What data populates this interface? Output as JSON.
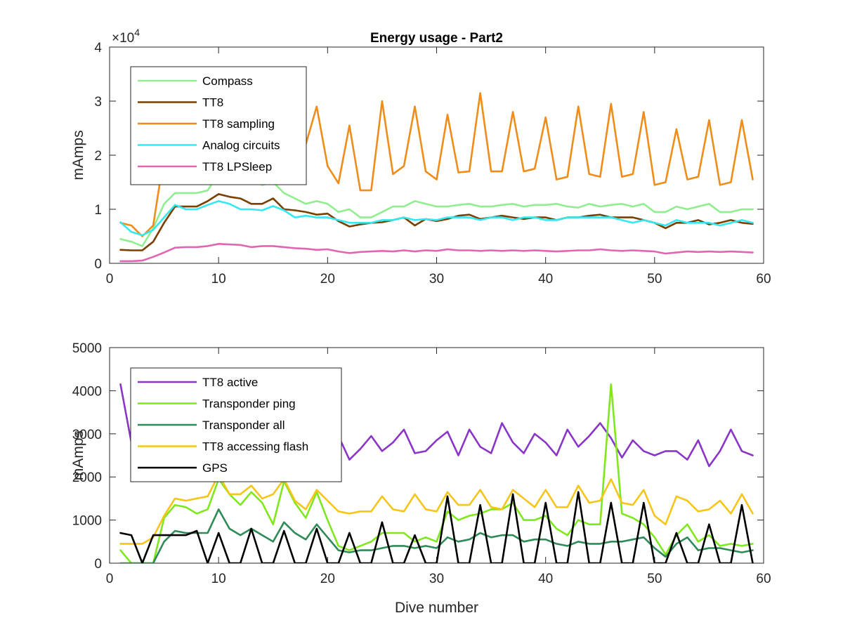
{
  "chart_data": [
    {
      "type": "line",
      "title": "Energy usage - Part2",
      "xlabel": "",
      "ylabel": "mAmps",
      "xlim": [
        0,
        60
      ],
      "ylim": [
        0,
        40000
      ],
      "xticks": [
        0,
        10,
        20,
        30,
        40,
        50,
        60
      ],
      "yticks": [
        0,
        10000,
        20000,
        30000,
        40000
      ],
      "ytick_labels": [
        "0",
        "1",
        "2",
        "3",
        "4"
      ],
      "exponent_label": "×10",
      "exponent_power": "4",
      "grid": false,
      "legend_position": "top-left",
      "x": [
        1,
        2,
        3,
        4,
        5,
        6,
        7,
        8,
        9,
        10,
        11,
        12,
        13,
        14,
        15,
        16,
        17,
        18,
        19,
        20,
        21,
        22,
        23,
        24,
        25,
        26,
        27,
        28,
        29,
        30,
        31,
        32,
        33,
        34,
        35,
        36,
        37,
        38,
        39,
        40,
        41,
        42,
        43,
        44,
        45,
        46,
        47,
        48,
        49,
        50,
        51,
        52,
        53,
        54,
        55,
        56,
        57,
        58,
        59
      ],
      "series": [
        {
          "name": "Compass",
          "color": "#90ee90",
          "values": [
            4500,
            4000,
            3200,
            6500,
            11000,
            13000,
            13000,
            13000,
            13500,
            16500,
            16000,
            15000,
            15500,
            14500,
            15000,
            13000,
            12000,
            11000,
            11500,
            11000,
            9500,
            10000,
            8500,
            8500,
            9500,
            10500,
            10500,
            11500,
            11000,
            10500,
            10500,
            10800,
            11000,
            10500,
            10500,
            10800,
            11000,
            10500,
            10800,
            10800,
            11000,
            10500,
            10300,
            11000,
            10500,
            10800,
            11000,
            10500,
            11000,
            9500,
            9500,
            10500,
            10000,
            10500,
            11000,
            9500,
            9500,
            10000,
            10000
          ]
        },
        {
          "name": "TT8",
          "color": "#7b3f00",
          "values": [
            2500,
            2400,
            2400,
            4000,
            7500,
            10500,
            10500,
            10500,
            11500,
            12800,
            12300,
            12000,
            11000,
            11000,
            12000,
            10000,
            9800,
            9500,
            9000,
            9200,
            7800,
            6800,
            7200,
            7500,
            7600,
            8000,
            8500,
            7000,
            8200,
            7800,
            8200,
            8800,
            9000,
            8200,
            8500,
            8800,
            8500,
            8200,
            8500,
            8500,
            8000,
            8500,
            8500,
            8800,
            9000,
            8500,
            8500,
            8500,
            8000,
            7500,
            6500,
            7500,
            7500,
            8000,
            7200,
            7500,
            8000,
            7500,
            7300
          ]
        },
        {
          "name": "TT8 sampling",
          "color": "#f08c19",
          "values": [
            7500,
            7000,
            5000,
            7000,
            20000,
            null,
            null,
            null,
            null,
            null,
            null,
            null,
            null,
            null,
            null,
            null,
            null,
            22000,
            29000,
            18000,
            14800,
            25500,
            13500,
            13500,
            30000,
            16500,
            18000,
            29000,
            17000,
            15500,
            27500,
            16800,
            17000,
            31500,
            17000,
            17000,
            28000,
            17000,
            17500,
            27000,
            15500,
            16000,
            29000,
            16500,
            16000,
            29500,
            16000,
            16500,
            28000,
            14500,
            15000,
            24800,
            15500,
            16000,
            26500,
            14500,
            15000,
            26500,
            15500
          ]
        },
        {
          "name": "Analog circuits",
          "color": "#33e8f0",
          "values": [
            7600,
            5800,
            5200,
            6200,
            8500,
            10800,
            10000,
            10000,
            10800,
            11500,
            11000,
            10000,
            10000,
            9800,
            10600,
            9800,
            8500,
            8800,
            8500,
            8500,
            8000,
            7500,
            7500,
            7500,
            8000,
            8000,
            8500,
            8000,
            8200,
            8000,
            8500,
            8500,
            8500,
            8000,
            8500,
            8500,
            8000,
            8500,
            8500,
            8000,
            8000,
            8500,
            8500,
            8500,
            8500,
            8500,
            8000,
            7500,
            8000,
            7500,
            7000,
            8000,
            7500,
            7500,
            7500,
            7000,
            7500,
            8000,
            7500
          ]
        },
        {
          "name": "TT8 LPSleep",
          "color": "#e066b3",
          "values": [
            400,
            400,
            500,
            1200,
            2000,
            2900,
            3000,
            3000,
            3200,
            3600,
            3500,
            3400,
            3000,
            3200,
            3200,
            3000,
            2800,
            2700,
            2500,
            2600,
            2200,
            1900,
            2100,
            2200,
            2300,
            2200,
            2400,
            2200,
            2400,
            2300,
            2600,
            2400,
            2400,
            2300,
            2400,
            2300,
            2400,
            2300,
            2400,
            2300,
            2200,
            2300,
            2400,
            2400,
            2600,
            2400,
            2300,
            2400,
            2300,
            2200,
            1800,
            2000,
            2200,
            2100,
            2200,
            2100,
            2200,
            2100,
            2000
          ]
        }
      ]
    },
    {
      "type": "line",
      "title": "",
      "xlabel": "Dive number",
      "ylabel": "mAmps",
      "xlim": [
        0,
        60
      ],
      "ylim": [
        0,
        5000
      ],
      "xticks": [
        0,
        10,
        20,
        30,
        40,
        50,
        60
      ],
      "yticks": [
        0,
        1000,
        2000,
        3000,
        4000,
        5000
      ],
      "ytick_labels": [
        "0",
        "1000",
        "2000",
        "3000",
        "4000",
        "5000"
      ],
      "grid": false,
      "legend_position": "top-left",
      "x": [
        1,
        2,
        3,
        4,
        5,
        6,
        7,
        8,
        9,
        10,
        11,
        12,
        13,
        14,
        15,
        16,
        17,
        18,
        19,
        20,
        21,
        22,
        23,
        24,
        25,
        26,
        27,
        28,
        29,
        30,
        31,
        32,
        33,
        34,
        35,
        36,
        37,
        38,
        39,
        40,
        41,
        42,
        43,
        44,
        45,
        46,
        47,
        48,
        49,
        50,
        51,
        52,
        53,
        54,
        55,
        56,
        57,
        58,
        59
      ],
      "series": [
        {
          "name": "TT8 active",
          "color": "#8b35c8",
          "values": [
            4150,
            2800,
            null,
            null,
            null,
            null,
            null,
            null,
            null,
            null,
            null,
            null,
            null,
            null,
            null,
            null,
            null,
            null,
            null,
            2900,
            2950,
            2400,
            2650,
            2950,
            2600,
            2800,
            3100,
            2550,
            2600,
            2850,
            3050,
            2500,
            3100,
            2700,
            2550,
            3250,
            2800,
            2550,
            3000,
            2800,
            2500,
            3100,
            2700,
            2950,
            3250,
            2900,
            2450,
            2850,
            2600,
            2500,
            2600,
            2600,
            2400,
            2850,
            2250,
            2600,
            3100,
            2600,
            2500
          ]
        },
        {
          "name": "Transponder ping",
          "color": "#7fe81c",
          "values": [
            300,
            0,
            0,
            0,
            1050,
            1350,
            1300,
            1150,
            1250,
            1950,
            1600,
            1350,
            1650,
            1400,
            900,
            1900,
            1400,
            1050,
            1650,
            1000,
            400,
            300,
            400,
            500,
            700,
            700,
            700,
            500,
            600,
            500,
            1200,
            1000,
            1100,
            1150,
            1250,
            1250,
            1400,
            1000,
            1000,
            1100,
            800,
            650,
            1000,
            900,
            900,
            4150,
            1150,
            1050,
            900,
            600,
            200,
            650,
            900,
            500,
            650,
            400,
            450,
            400,
            450
          ]
        },
        {
          "name": "Transponder all",
          "color": "#2e8b57",
          "values": [
            0,
            0,
            0,
            0,
            500,
            750,
            700,
            700,
            700,
            1250,
            800,
            650,
            800,
            650,
            500,
            950,
            700,
            550,
            900,
            600,
            300,
            250,
            300,
            300,
            350,
            400,
            400,
            350,
            400,
            350,
            600,
            500,
            550,
            700,
            600,
            650,
            650,
            500,
            550,
            550,
            450,
            400,
            500,
            450,
            450,
            500,
            500,
            550,
            600,
            350,
            150,
            450,
            600,
            300,
            350,
            350,
            300,
            250,
            300
          ]
        },
        {
          "name": "TT8 accessing flash",
          "color": "#f5c518",
          "values": [
            450,
            450,
            450,
            600,
            1100,
            1500,
            1450,
            1500,
            1550,
            2050,
            1600,
            1600,
            1800,
            1500,
            1600,
            1950,
            1450,
            1250,
            1700,
            1450,
            1200,
            1150,
            1200,
            1200,
            1550,
            1250,
            1200,
            1600,
            1250,
            1200,
            1650,
            1350,
            1350,
            1700,
            1300,
            1250,
            1700,
            1500,
            1300,
            1700,
            1300,
            1300,
            1800,
            1400,
            1450,
            1950,
            1400,
            1350,
            1700,
            1100,
            900,
            1550,
            1450,
            1200,
            1250,
            1450,
            1150,
            1600,
            1150
          ]
        },
        {
          "name": "GPS",
          "color": "#000000",
          "values": [
            700,
            650,
            0,
            650,
            650,
            650,
            650,
            750,
            0,
            700,
            0,
            0,
            800,
            0,
            0,
            750,
            0,
            0,
            800,
            0,
            0,
            700,
            0,
            0,
            950,
            0,
            0,
            650,
            0,
            0,
            1550,
            0,
            0,
            1350,
            0,
            0,
            1600,
            0,
            0,
            1400,
            0,
            0,
            1650,
            0,
            0,
            1400,
            0,
            0,
            1400,
            0,
            0,
            700,
            0,
            0,
            900,
            0,
            0,
            1350,
            0
          ]
        }
      ]
    }
  ]
}
